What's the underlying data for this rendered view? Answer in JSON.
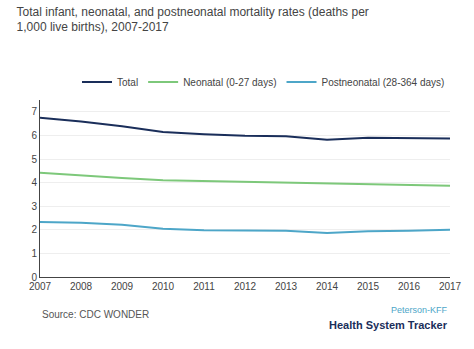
{
  "chart_data": {
    "type": "line",
    "title": "Total infant, neonatal, and postneonatal mortality rates (deaths per 1,000 live births), 2007-2017",
    "x": [
      2007,
      2008,
      2009,
      2010,
      2011,
      2012,
      2013,
      2014,
      2015,
      2016,
      2017
    ],
    "series": [
      {
        "name": "Total",
        "color": "#1a2e5a",
        "values": [
          6.75,
          6.59,
          6.39,
          6.14,
          6.05,
          5.98,
          5.96,
          5.82,
          5.9,
          5.87,
          5.87
        ]
      },
      {
        "name": "Neonatal (0-27 days)",
        "color": "#7dc87a",
        "values": [
          4.42,
          4.29,
          4.19,
          4.1,
          4.07,
          4.02,
          4.01,
          3.97,
          3.96,
          3.91,
          3.87
        ]
      },
      {
        "name": "Postneonatal (28-364 days)",
        "color": "#4da6c8",
        "values": [
          2.33,
          2.3,
          2.21,
          2.04,
          1.98,
          1.96,
          1.96,
          1.86,
          1.94,
          1.96,
          2.0
        ]
      }
    ],
    "xlim": [
      2007,
      2017
    ],
    "xticks": [
      2007,
      2008,
      2009,
      2010,
      2011,
      2012,
      2013,
      2014,
      2015,
      2016,
      2017
    ],
    "ylim": [
      0,
      7.5
    ],
    "yticks": [
      0,
      1,
      2,
      3,
      4,
      5,
      6,
      7
    ],
    "grid": true,
    "legend": "upper right",
    "annotations": [
      "Source: CDC WONDER",
      "Peterson-KFF",
      "Health System Tracker"
    ]
  }
}
